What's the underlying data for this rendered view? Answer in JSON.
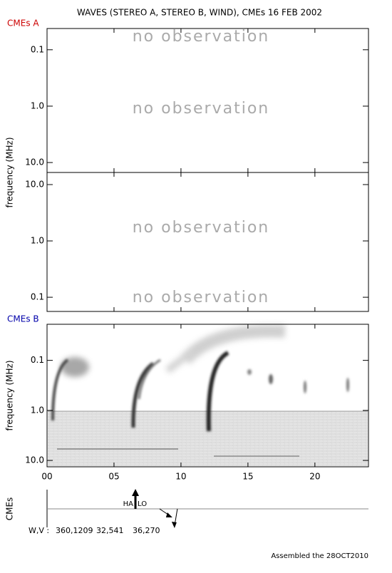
{
  "title": "WAVES (STEREO A, STEREO B, WIND), CMEs  16 FEB 2002",
  "footer": "Assembled the 28OCT2010",
  "chart_data": [
    {
      "type": "spectrogram",
      "title": "CMEs A",
      "title_color": "#cc0000",
      "ylabel": "frequency (MHz)",
      "log": true,
      "ylim": [
        15,
        0.042
      ],
      "yticks": [
        {
          "value": 0.1,
          "label": "0.1"
        },
        {
          "value": 1,
          "label": "1.0"
        },
        {
          "value": 10,
          "label": "10.0"
        }
      ],
      "annotations": [
        "no observation",
        "no observation"
      ]
    },
    {
      "type": "spectrogram",
      "log": true,
      "ylim": [
        0.056,
        16.4
      ],
      "yticks": [
        {
          "value": 10,
          "label": "10.0"
        },
        {
          "value": 1,
          "label": "1.0"
        },
        {
          "value": 0.1,
          "label": "0.1"
        }
      ],
      "annotations": [
        "no observation",
        "no observation"
      ]
    },
    {
      "type": "spectrogram",
      "title": "CMEs B",
      "title_color": "#0000aa",
      "ylabel": "frequency (MHz)",
      "log": true,
      "ylim": [
        13.4,
        0.019
      ],
      "yticks": [
        {
          "value": 0.1,
          "label": "0.1"
        },
        {
          "value": 1,
          "label": "1.0"
        },
        {
          "value": 10,
          "label": "10.0"
        }
      ],
      "xlim": [
        0,
        24
      ],
      "xticks": [
        {
          "value": 0,
          "label": "00"
        },
        {
          "value": 5,
          "label": "05"
        },
        10,
        15,
        20
      ]
    },
    {
      "type": "cme",
      "ylabel": "CMEs",
      "x": [
        6.6,
        9.2
      ],
      "halo_label": [
        "HA",
        "LO"
      ],
      "wv_label": "W,V :",
      "wv": [
        "360,1209",
        "32,541",
        "36,270"
      ]
    }
  ]
}
